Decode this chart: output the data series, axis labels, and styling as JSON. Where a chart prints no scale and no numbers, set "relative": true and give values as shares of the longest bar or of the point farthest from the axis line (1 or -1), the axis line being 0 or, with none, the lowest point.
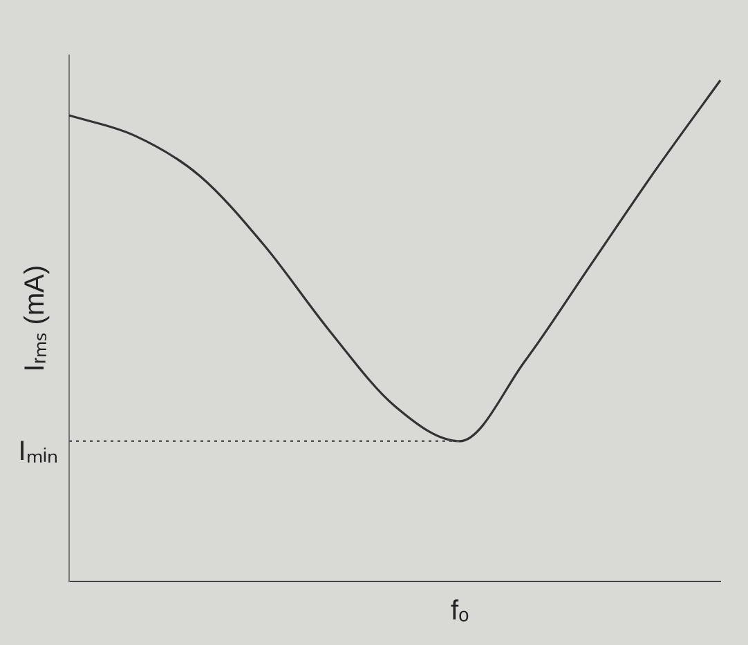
{
  "chart_data": {
    "type": "line",
    "relative": true,
    "categories": [
      null,
      null,
      null,
      null,
      null,
      null,
      null,
      null,
      null,
      null,
      null
    ],
    "annotations": [
      "fₒ"
    ],
    "series": [
      {
        "color": "#333333",
        "values": [
          0.93,
          0.89,
          0.81,
          0.67,
          0.5,
          0.35,
          0.28,
          0.44,
          0.63,
          0.82,
          1.0
        ]
      }
    ],
    "ylabel": "Iᵣₘₛ (mA)",
    "ref_lines": [
      {
        "axis": "y",
        "value": 0.28,
        "label": "Iₘᵢₙ",
        "line_style": "dotted",
        "color": "#555555"
      }
    ],
    "grid": false,
    "legend": false,
    "marker": "none",
    "line_style": "solid"
  }
}
